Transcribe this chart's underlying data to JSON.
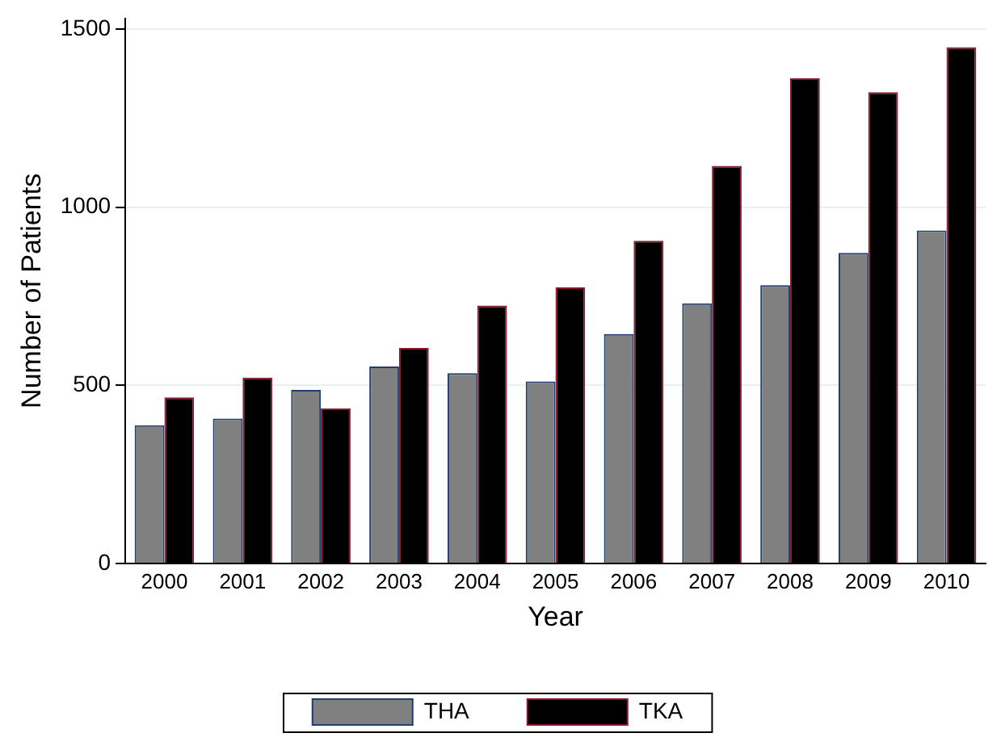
{
  "chart_data": {
    "type": "bar",
    "xlabel": "Year",
    "ylabel": "Number of Patients",
    "categories": [
      "2000",
      "2001",
      "2002",
      "2003",
      "2004",
      "2005",
      "2006",
      "2007",
      "2008",
      "2009",
      "2010"
    ],
    "series": [
      {
        "name": "THA",
        "color": "#808080",
        "values": [
          388,
          407,
          487,
          553,
          534,
          511,
          644,
          730,
          781,
          872,
          935
        ]
      },
      {
        "name": "TKA",
        "color": "#000000",
        "values": [
          466,
          522,
          435,
          605,
          724,
          775,
          906,
          1116,
          1362,
          1323,
          1449
        ]
      }
    ],
    "ylim": [
      0,
      1530
    ],
    "yticks": [
      0,
      500,
      1000,
      1500
    ],
    "grid": "y",
    "legend": "bottom"
  }
}
